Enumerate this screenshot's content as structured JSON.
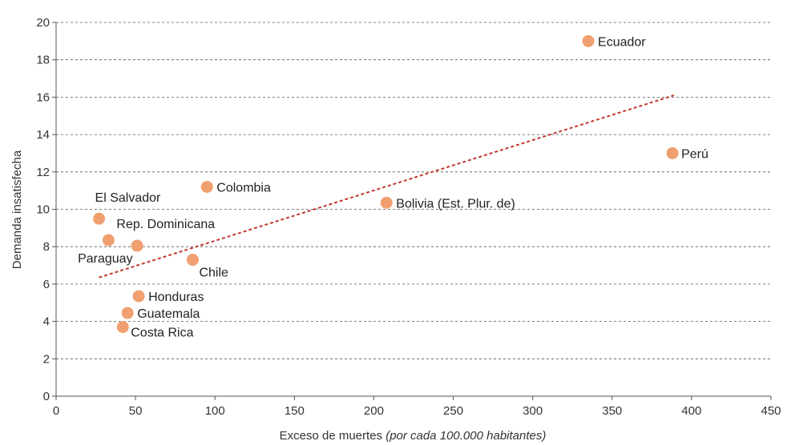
{
  "chart_data": {
    "type": "scatter",
    "title": "",
    "xlabel": "Exceso de muertes ",
    "xlabel_italic": "(por cada 100.000 habitantes)",
    "ylabel": "Demanda insatisfecha",
    "xlim": [
      0,
      450
    ],
    "ylim": [
      0,
      20
    ],
    "xticks": [
      0,
      50,
      100,
      150,
      200,
      250,
      300,
      350,
      400,
      450
    ],
    "yticks": [
      0,
      2,
      4,
      6,
      8,
      10,
      12,
      14,
      16,
      18,
      20
    ],
    "grid": "horizontal dashed",
    "point_color": "#f0a070",
    "trendline_color": "#c0392b",
    "trendline": {
      "x": [
        27,
        389
      ],
      "y": [
        6.35,
        16.1
      ]
    },
    "points": [
      {
        "label": "Ecuador",
        "x": 335,
        "y": 19.0
      },
      {
        "label": "Perú",
        "x": 388,
        "y": 13.0
      },
      {
        "label": "Colombia",
        "x": 95,
        "y": 11.2
      },
      {
        "label": "Bolivia (Est. Plur. de)",
        "x": 208,
        "y": 10.35
      },
      {
        "label": "El Salvador",
        "x": 27,
        "y": 9.5
      },
      {
        "label": "Rep. Dominicana",
        "x": 33,
        "y": 8.35
      },
      {
        "label": "Paraguay",
        "x": 51,
        "y": 8.05
      },
      {
        "label": "Chile",
        "x": 86,
        "y": 7.3
      },
      {
        "label": "Honduras",
        "x": 52,
        "y": 5.35
      },
      {
        "label": "Guatemala",
        "x": 45,
        "y": 4.45
      },
      {
        "label": "Costa Rica",
        "x": 42,
        "y": 3.7
      }
    ]
  }
}
